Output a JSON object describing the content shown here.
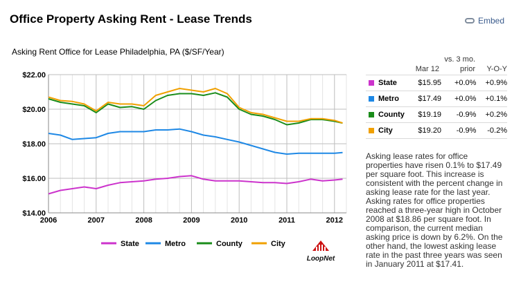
{
  "header": {
    "title": "Office Property Asking Rent - Lease Trends",
    "embed_label": "Embed"
  },
  "chart_title": "Asking Rent Office for Lease Philadelphia, PA ($/SF/Year)",
  "chart_data": {
    "type": "line",
    "title": "Asking Rent Office for Lease Philadelphia, PA ($/SF/Year)",
    "xlabel": "",
    "ylabel": "",
    "xlim": [
      2006,
      2012.25
    ],
    "ylim": [
      14,
      22
    ],
    "x_ticks": [
      2006,
      2007,
      2008,
      2009,
      2010,
      2011,
      2012
    ],
    "y_ticks": [
      14,
      16,
      18,
      20,
      22
    ],
    "y_tick_labels": [
      "$14.00",
      "$16.00",
      "$18.00",
      "$20.00",
      "$22.00"
    ],
    "grid": true,
    "legend": "bottom",
    "x": [
      2006.0,
      2006.25,
      2006.5,
      2006.75,
      2007.0,
      2007.25,
      2007.5,
      2007.75,
      2008.0,
      2008.25,
      2008.5,
      2008.75,
      2009.0,
      2009.25,
      2009.5,
      2009.75,
      2010.0,
      2010.25,
      2010.5,
      2010.75,
      2011.0,
      2011.25,
      2011.5,
      2011.75,
      2012.0,
      2012.17
    ],
    "series": [
      {
        "name": "State",
        "color": "#cc33cc",
        "values": [
          15.1,
          15.3,
          15.4,
          15.5,
          15.4,
          15.6,
          15.75,
          15.8,
          15.85,
          15.95,
          16.0,
          16.1,
          16.15,
          15.95,
          15.85,
          15.85,
          15.85,
          15.8,
          15.75,
          15.75,
          15.7,
          15.8,
          15.95,
          15.85,
          15.9,
          15.95
        ]
      },
      {
        "name": "Metro",
        "color": "#1e88e5",
        "values": [
          18.6,
          18.5,
          18.25,
          18.3,
          18.35,
          18.6,
          18.7,
          18.7,
          18.7,
          18.8,
          18.8,
          18.85,
          18.7,
          18.5,
          18.4,
          18.25,
          18.1,
          17.9,
          17.7,
          17.5,
          17.4,
          17.45,
          17.45,
          17.45,
          17.45,
          17.49
        ]
      },
      {
        "name": "County",
        "color": "#1a8c1a",
        "values": [
          20.6,
          20.4,
          20.3,
          20.2,
          19.8,
          20.3,
          20.1,
          20.15,
          20.0,
          20.5,
          20.8,
          20.9,
          20.9,
          20.8,
          20.95,
          20.7,
          20.0,
          19.7,
          19.6,
          19.4,
          19.1,
          19.2,
          19.4,
          19.4,
          19.3,
          19.19
        ]
      },
      {
        "name": "City",
        "color": "#f0a000",
        "values": [
          20.7,
          20.5,
          20.45,
          20.3,
          19.9,
          20.4,
          20.3,
          20.3,
          20.2,
          20.8,
          21.0,
          21.2,
          21.1,
          21.0,
          21.2,
          20.9,
          20.1,
          19.8,
          19.7,
          19.5,
          19.3,
          19.3,
          19.45,
          19.45,
          19.35,
          19.2
        ]
      }
    ]
  },
  "table": {
    "head": {
      "mar": "Mar 12",
      "vs_line1": "vs. 3 mo.",
      "vs_line2": "prior",
      "yoy": "Y-O-Y"
    },
    "rows": [
      {
        "name": "State",
        "color": "#cc33cc",
        "value": "$15.95",
        "vs3": "+0.0%",
        "yoy": "+0.9%"
      },
      {
        "name": "Metro",
        "color": "#1e88e5",
        "value": "$17.49",
        "vs3": "+0.0%",
        "yoy": "+0.1%"
      },
      {
        "name": "County",
        "color": "#1a8c1a",
        "value": "$19.19",
        "vs3": "-0.9%",
        "yoy": "+0.2%"
      },
      {
        "name": "City",
        "color": "#f0a000",
        "value": "$19.20",
        "vs3": "-0.9%",
        "yoy": "-0.2%"
      }
    ]
  },
  "description": "Asking lease rates for office properties have risen 0.1% to $17.49 per square foot. This increase is consistent with the percent change in asking lease rate for the last year. Asking rates for office properties reached a three-year high in October 2008 at $18.86 per square foot. In comparison, the current median asking price is down by 6.2%. On the other hand, the lowest asking lease rate in the past three years was seen in January 2011 at $17.41.",
  "logo": {
    "text": "LoopNet",
    "icon": "loopnet-logo-icon",
    "color": "#cc1111"
  }
}
